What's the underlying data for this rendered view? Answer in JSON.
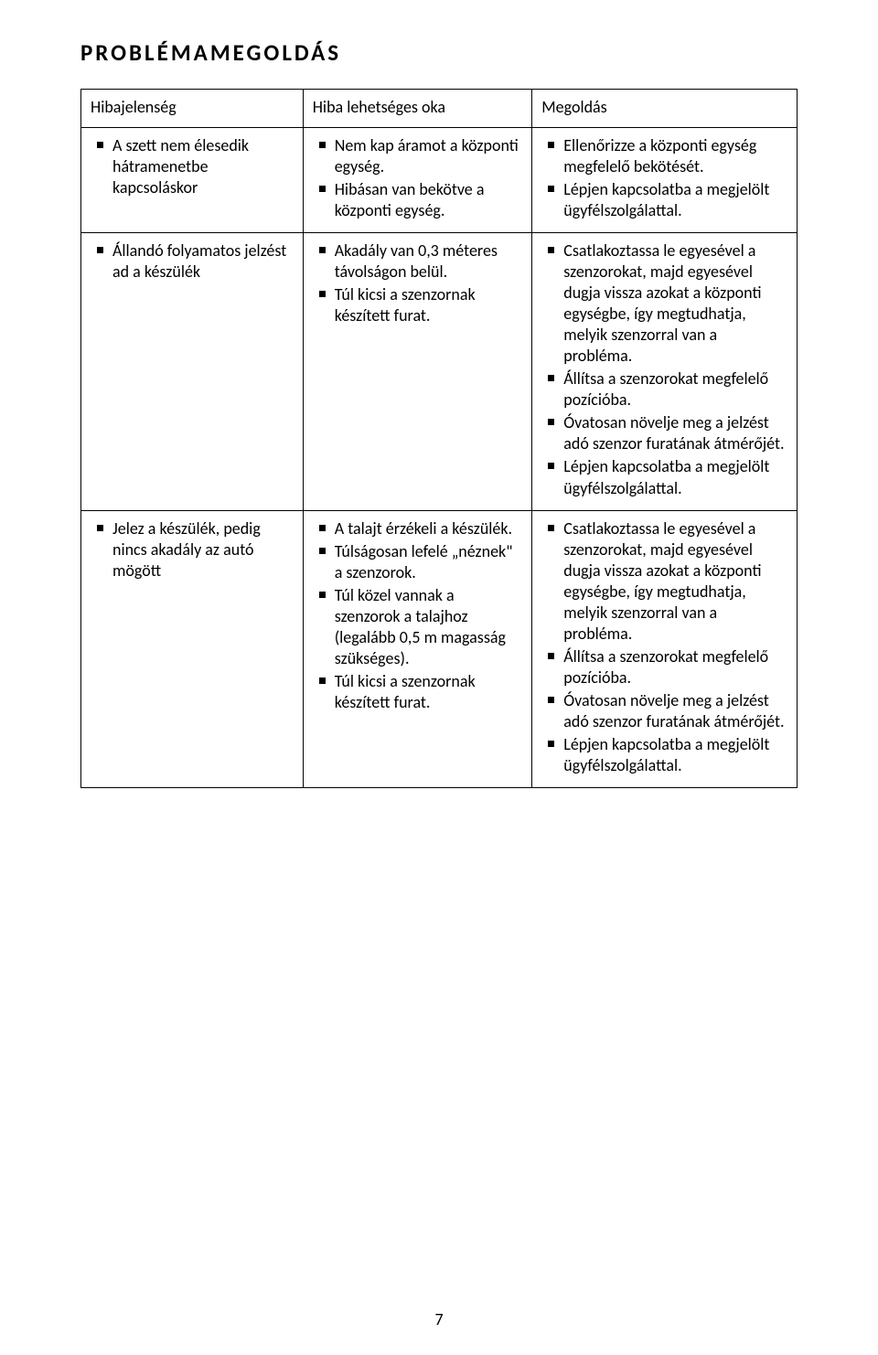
{
  "title": "PROBLÉMAMEGOLDÁS",
  "headers": {
    "col1": "Hibajelenség",
    "col2": "Hiba lehetséges oka",
    "col3": "Megoldás"
  },
  "rows": [
    {
      "symptom": [
        "A szett nem élesedik hátramenetbe kapcsoláskor"
      ],
      "cause": [
        "Nem kap áramot a központi egység.",
        "Hibásan van bekötve a központi egység."
      ],
      "solution": [
        "Ellenőrizze a központi egység megfelelő bekötését.",
        "Lépjen kapcsolatba a megjelölt ügyfélszolgálattal."
      ]
    },
    {
      "symptom": [
        "Állandó folyamatos jelzést ad a készülék"
      ],
      "cause": [
        "Akadály van 0,3 méteres távolságon belül.",
        "Túl kicsi a szenzornak készített furat."
      ],
      "solution": [
        "Csatlakoztassa le egyesével a szenzorokat, majd egyesével dugja vissza azokat a központi egységbe, így megtudhatja, melyik szenzorral van a probléma.",
        "Állítsa a szenzorokat megfelelő pozícióba.",
        "Óvatosan növelje meg a jelzést adó szenzor furatának átmérőjét.",
        "Lépjen kapcsolatba a megjelölt ügyfélszolgálattal."
      ]
    },
    {
      "symptom": [
        "Jelez a készülék, pedig nincs akadály az autó mögött"
      ],
      "cause": [
        "A talajt érzékeli a készülék.",
        "Túlságosan lefelé „néznek\" a szenzorok.",
        "Túl közel vannak a szenzorok a talajhoz (legalább 0,5 m magasság szükséges).",
        "Túl kicsi a szenzornak készített furat."
      ],
      "solution": [
        "Csatlakoztassa le egyesével a szenzorokat, majd egyesével dugja vissza azokat a központi egységbe, így megtudhatja, melyik szenzorral van a probléma.",
        "Állítsa a szenzorokat megfelelő pozícióba.",
        "Óvatosan növelje meg a jelzést adó szenzor furatának átmérőjét.",
        "Lépjen kapcsolatba a megjelölt ügyfélszolgálattal."
      ]
    }
  ],
  "page_number": "7"
}
